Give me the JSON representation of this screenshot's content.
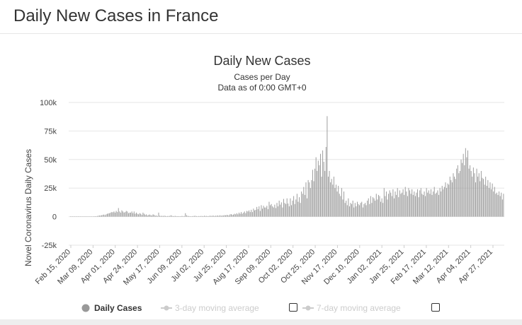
{
  "page": {
    "title": "Daily New Cases in France"
  },
  "chart_data": {
    "type": "bar",
    "title": "Daily New Cases",
    "subtitle": "Cases per Day",
    "subtitle2": "Data as of 0:00 GMT+0",
    "xlabel": "",
    "ylabel": "Novel Coronavirus Daily Cases",
    "ylim": [
      -25000,
      100000
    ],
    "y_ticks": [
      "100k",
      "75k",
      "50k",
      "25k",
      "0",
      "-25k"
    ],
    "y_tick_values": [
      100000,
      75000,
      50000,
      25000,
      0,
      -25000
    ],
    "x_tick_labels": [
      "Feb 15, 2020",
      "Mar 09, 2020",
      "Apr 01, 2020",
      "Apr 24, 2020",
      "May 17, 2020",
      "Jun 09, 2020",
      "Jul 02, 2020",
      "Jul 25, 2020",
      "Aug 17, 2020",
      "Sep 09, 2020",
      "Oct 02, 2020",
      "Oct 25, 2020",
      "Nov 17, 2020",
      "Dec 10, 2020",
      "Jan 02, 2021",
      "Jan 25, 2021",
      "Feb 17, 2021",
      "Mar 12, 2021",
      "Apr 04, 2021",
      "Apr 27, 2021"
    ],
    "grid": true,
    "legend_position": "bottom",
    "series": [
      {
        "name": "Daily Cases",
        "color": "#999999",
        "values": [
          0,
          0,
          0,
          0,
          0,
          0,
          0,
          0,
          0,
          0,
          0,
          0,
          0,
          0,
          0,
          0,
          0,
          0,
          0,
          0,
          0,
          300,
          400,
          300,
          500,
          800,
          900,
          1000,
          1200,
          1500,
          1800,
          1200,
          2000,
          2500,
          2800,
          3000,
          3500,
          4000,
          3800,
          4500,
          3500,
          5000,
          4000,
          7500,
          4500,
          3500,
          5500,
          4500,
          3500,
          4000,
          5000,
          4500,
          3000,
          3500,
          3500,
          4500,
          3000,
          4500,
          2500,
          3500,
          2500,
          2000,
          3000,
          2500,
          1500,
          3500,
          2500,
          1500,
          2000,
          1000,
          1500,
          1800,
          1200,
          1000,
          2000,
          1500,
          800,
          1000,
          500,
          3500,
          800,
          600,
          700,
          500,
          800,
          600,
          400,
          500,
          500,
          600,
          1200,
          700,
          400,
          500,
          600,
          400,
          400,
          400,
          300,
          400,
          600,
          300,
          500,
          3000,
          1200,
          600,
          500,
          400,
          300,
          400,
          500,
          600,
          700,
          400,
          300,
          500,
          400,
          600,
          500,
          400,
          800,
          500,
          600,
          400,
          500,
          800,
          600,
          700,
          900,
          500,
          800,
          700,
          1000,
          600,
          1200,
          700,
          1000,
          900,
          1300,
          1100,
          1500,
          1300,
          1000,
          2000,
          2200,
          1500,
          1800,
          2500,
          2000,
          3000,
          2000,
          3500,
          2500,
          4000,
          2500,
          3500,
          4500,
          3000,
          5000,
          4500,
          5500,
          4000,
          6000,
          4000,
          7000,
          5500,
          6000,
          8500,
          6500,
          9000,
          5000,
          10000,
          7000,
          9500,
          8000,
          8000,
          9500,
          6500,
          13000,
          10000,
          11000,
          9000,
          8000,
          10500,
          7500,
          12000,
          9000,
          14000,
          10500,
          12500,
          8000,
          15500,
          12000,
          11000,
          16000,
          11500,
          9000,
          16000,
          10000,
          14000,
          18000,
          11000,
          15000,
          20000,
          13000,
          17000,
          12000,
          22000,
          20000,
          26000,
          19000,
          30000,
          16000,
          32000,
          30000,
          25000,
          32000,
          41000,
          31000,
          42000,
          52000,
          40000,
          49000,
          45000,
          55000,
          35000,
          58000,
          48000,
          40000,
          61000,
          88000,
          35000,
          40000,
          30000,
          33000,
          28000,
          35000,
          25000,
          28000,
          22000,
          27000,
          20000,
          18000,
          25000,
          15000,
          22000,
          12000,
          14000,
          10000,
          16000,
          9000,
          12000,
          11000,
          14000,
          8000,
          12000,
          9000,
          13000,
          11000,
          10000,
          12000,
          13000,
          8000,
          11000,
          12000,
          10000,
          14000,
          16000,
          11000,
          18000,
          12000,
          17000,
          16000,
          14000,
          20000,
          15000,
          19000,
          18000,
          13000,
          16000,
          12000,
          25000,
          18000,
          22000,
          15000,
          20000,
          23000,
          21000,
          18000,
          24000,
          16000,
          22000,
          19000,
          25000,
          17000,
          23000,
          20000,
          21000,
          24000,
          19000,
          26000,
          22000,
          18000,
          25000,
          23000,
          20000,
          24000,
          19000,
          22000,
          18000,
          21000,
          24000,
          17000,
          23000,
          25000,
          20000,
          19000,
          22000,
          18000,
          25000,
          21000,
          23000,
          20000,
          24000,
          19000,
          22000,
          26000,
          20000,
          21000,
          23000,
          19000,
          25000,
          22000,
          27000,
          24000,
          26000,
          30000,
          25000,
          29000,
          28000,
          35000,
          32000,
          30000,
          38000,
          35000,
          33000,
          42000,
          45000,
          38000,
          40000,
          50000,
          47000,
          55000,
          45000,
          60000,
          52000,
          58000,
          42000,
          45000,
          40000,
          35000,
          43000,
          38000,
          30000,
          42000,
          35000,
          38000,
          31000,
          40000,
          34000,
          33000,
          28000,
          35000,
          27000,
          32000,
          25000,
          30000,
          24000,
          29000,
          22000,
          26000,
          20000,
          21000,
          19000,
          22000,
          18000,
          21000,
          15000,
          20000
        ]
      },
      {
        "name": "3-day moving average",
        "color": "#cccccc",
        "enabled": false
      },
      {
        "name": "7-day moving average",
        "color": "#cccccc",
        "enabled": false
      }
    ]
  }
}
